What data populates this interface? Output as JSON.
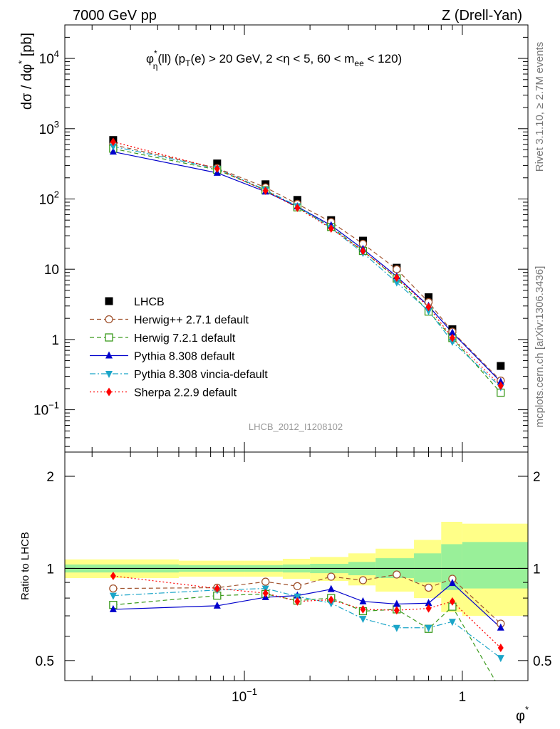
{
  "header": {
    "left": "7000 GeV pp",
    "right": "Z (Drell-Yan)"
  },
  "side_labels": {
    "rivet": "Rivet 3.1.10, ≥ 2.7M events",
    "mcplots": "mcplots.cern.ch [arXiv:1306.3436]"
  },
  "watermark": "LHCB_2012_I1208102",
  "chart_data": [
    {
      "type": "scatter",
      "title": "φ*η(ll) (pT(e) > 20 GeV, 2 <η < 5, 60 < mee < 120)",
      "xlabel": "φ*",
      "ylabel": "dσ / dφ* [pb]",
      "xscale": "log",
      "yscale": "log",
      "xlim": [
        0.015,
        2.0
      ],
      "ylim": [
        0.025,
        30000
      ],
      "legend_position": "lower-left",
      "x": [
        0.025,
        0.075,
        0.125,
        0.175,
        0.25,
        0.35,
        0.5,
        0.7,
        0.9,
        1.5
      ],
      "series": [
        {
          "name": "LHCB",
          "color": "#000000",
          "marker": "square",
          "line": "none",
          "values": [
            690,
            320,
            162,
            97,
            50,
            25.5,
            10.5,
            4.0,
            1.4,
            0.42
          ]
        },
        {
          "name": "Herwig++ 2.7.1 default",
          "color": "#a0522d",
          "marker": "open-circle",
          "line": "dashed",
          "values": [
            590,
            275,
            146,
            85,
            47,
            23,
            10,
            3.4,
            1.29,
            0.26
          ]
        },
        {
          "name": "Herwig 7.2.1 default",
          "color": "#3a9a1c",
          "marker": "open-square",
          "line": "dashed",
          "values": [
            520,
            260,
            133,
            76,
            40,
            18.2,
            7.4,
            2.5,
            1.05,
            0.175
          ]
        },
        {
          "name": "Pythia 8.308 default",
          "color": "#0000cc",
          "marker": "triangle-up",
          "line": "solid",
          "values": [
            470,
            235,
            127,
            78,
            42,
            19.4,
            7.9,
            3.0,
            1.25,
            0.25
          ]
        },
        {
          "name": "Pythia 8.308 vincia-default",
          "color": "#1ba5c8",
          "marker": "triangle-down",
          "line": "dashdot",
          "values": [
            560,
            270,
            135,
            79,
            38.5,
            17.1,
            6.5,
            2.55,
            0.93,
            0.21
          ]
        },
        {
          "name": "Sherpa 2.2.9 default",
          "color": "#ff0000",
          "marker": "diamond",
          "line": "dotted",
          "values": [
            650,
            270,
            131,
            75,
            38,
            18.2,
            7.6,
            2.9,
            1.05,
            0.22
          ]
        }
      ]
    },
    {
      "type": "scatter",
      "title": "",
      "xlabel": "φ*",
      "ylabel": "Ratio to LHCB",
      "xscale": "log",
      "yscale": "log",
      "xlim": [
        0.015,
        2.0
      ],
      "ylim": [
        0.43,
        2.4
      ],
      "x": [
        0.025,
        0.075,
        0.125,
        0.175,
        0.25,
        0.35,
        0.5,
        0.7,
        0.9,
        1.5
      ],
      "bands": [
        {
          "name": "stat",
          "color": "#99f099",
          "edges": [
            0.015,
            0.05,
            0.1,
            0.15,
            0.2,
            0.3,
            0.4,
            0.6,
            0.8,
            1.0,
            2.0
          ],
          "low": [
            0.97,
            0.975,
            0.975,
            0.97,
            0.965,
            0.95,
            0.93,
            0.9,
            0.85,
            0.86
          ],
          "high": [
            1.03,
            1.025,
            1.025,
            1.03,
            1.035,
            1.05,
            1.08,
            1.12,
            1.2,
            1.22
          ]
        },
        {
          "name": "total",
          "color": "#ffff88",
          "edges": [
            0.015,
            0.05,
            0.1,
            0.15,
            0.2,
            0.3,
            0.4,
            0.6,
            0.8,
            1.0,
            2.0
          ],
          "low": [
            0.93,
            0.94,
            0.94,
            0.925,
            0.91,
            0.88,
            0.84,
            0.8,
            0.72,
            0.7
          ],
          "high": [
            1.07,
            1.06,
            1.06,
            1.075,
            1.09,
            1.12,
            1.16,
            1.24,
            1.42,
            1.4
          ]
        }
      ],
      "reference_line": 1,
      "series": [
        {
          "name": "Herwig++ 2.7.1 default",
          "color": "#a0522d",
          "marker": "open-circle",
          "line": "dashed",
          "values": [
            0.86,
            0.865,
            0.905,
            0.875,
            0.94,
            0.915,
            0.955,
            0.865,
            0.925,
            0.66
          ]
        },
        {
          "name": "Herwig 7.2.1 default",
          "color": "#3a9a1c",
          "marker": "open-square",
          "line": "dashed",
          "values": [
            0.76,
            0.815,
            0.825,
            0.785,
            0.8,
            0.725,
            0.735,
            0.635,
            0.75,
            0.4
          ]
        },
        {
          "name": "Pythia 8.308 default",
          "color": "#0000cc",
          "marker": "triangle-up",
          "line": "solid",
          "values": [
            0.735,
            0.755,
            0.805,
            0.815,
            0.855,
            0.78,
            0.765,
            0.77,
            0.895,
            0.64
          ]
        },
        {
          "name": "Pythia 8.308 vincia-default",
          "color": "#1ba5c8",
          "marker": "triangle-down",
          "line": "dashdot",
          "values": [
            0.815,
            0.85,
            0.86,
            0.81,
            0.77,
            0.685,
            0.64,
            0.64,
            0.67,
            0.51
          ]
        },
        {
          "name": "Sherpa 2.2.9 default",
          "color": "#ff0000",
          "marker": "diamond",
          "line": "dotted",
          "values": [
            0.945,
            0.86,
            0.83,
            0.78,
            0.79,
            0.735,
            0.73,
            0.74,
            0.78,
            0.55
          ]
        }
      ]
    }
  ]
}
